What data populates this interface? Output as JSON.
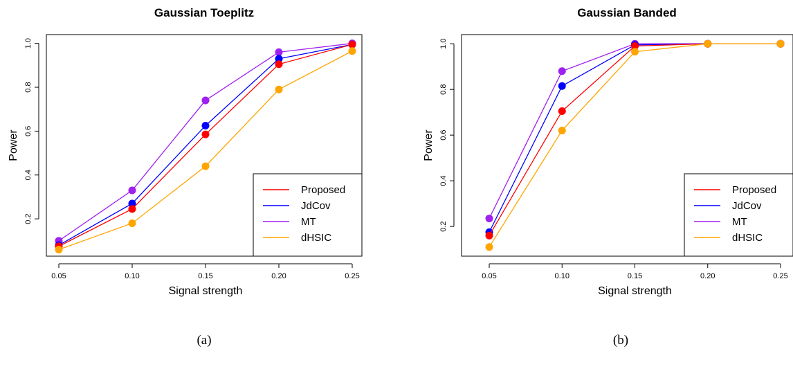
{
  "chart_data": [
    {
      "type": "line",
      "title": "Gaussian Toeplitz",
      "xlabel": "Signal strength",
      "ylabel": "Power",
      "caption": "(a)",
      "x": [
        0.05,
        0.1,
        0.15,
        0.2,
        0.25
      ],
      "x_tick_labels": [
        "0.05",
        "0.10",
        "0.15",
        "0.20",
        "0.25"
      ],
      "y_ticks": [
        0.2,
        0.4,
        0.6,
        0.8,
        1.0
      ],
      "y_tick_labels": [
        "0.2",
        "0.4",
        "0.6",
        "0.8",
        "1.0"
      ],
      "ylim": [
        0.03,
        1.04
      ],
      "legend_position": "bottom-right",
      "series": [
        {
          "name": "MT",
          "color": "#a020f0",
          "values": [
            0.1,
            0.33,
            0.74,
            0.96,
            1.0
          ]
        },
        {
          "name": "JdCov",
          "color": "#0000ff",
          "values": [
            0.08,
            0.27,
            0.625,
            0.93,
            0.995
          ]
        },
        {
          "name": "Proposed",
          "color": "#ff0000",
          "values": [
            0.075,
            0.245,
            0.585,
            0.905,
            0.995
          ]
        },
        {
          "name": "dHSIC",
          "color": "#ffa500",
          "values": [
            0.06,
            0.18,
            0.44,
            0.79,
            0.965
          ]
        }
      ],
      "legend_order": [
        "Proposed",
        "JdCov",
        "MT",
        "dHSIC"
      ]
    },
    {
      "type": "line",
      "title": "Gaussian Banded",
      "xlabel": "Signal strength",
      "ylabel": "Power",
      "caption": "(b)",
      "x": [
        0.05,
        0.1,
        0.15,
        0.2,
        0.25
      ],
      "x_tick_labels": [
        "0.05",
        "0.10",
        "0.15",
        "0.20",
        "0.25"
      ],
      "y_ticks": [
        0.2,
        0.4,
        0.6,
        0.8,
        1.0
      ],
      "y_tick_labels": [
        "0.2",
        "0.4",
        "0.6",
        "0.8",
        "1.0"
      ],
      "ylim": [
        0.07,
        1.04
      ],
      "legend_position": "bottom-right",
      "series": [
        {
          "name": "MT",
          "color": "#a020f0",
          "values": [
            0.235,
            0.88,
            1.0,
            1.0,
            1.0
          ]
        },
        {
          "name": "JdCov",
          "color": "#0000ff",
          "values": [
            0.175,
            0.815,
            0.995,
            1.0,
            1.0
          ]
        },
        {
          "name": "Proposed",
          "color": "#ff0000",
          "values": [
            0.16,
            0.705,
            0.99,
            1.0,
            1.0
          ]
        },
        {
          "name": "dHSIC",
          "color": "#ffa500",
          "values": [
            0.11,
            0.62,
            0.965,
            1.0,
            1.0
          ]
        }
      ],
      "legend_order": [
        "Proposed",
        "JdCov",
        "MT",
        "dHSIC"
      ]
    }
  ]
}
